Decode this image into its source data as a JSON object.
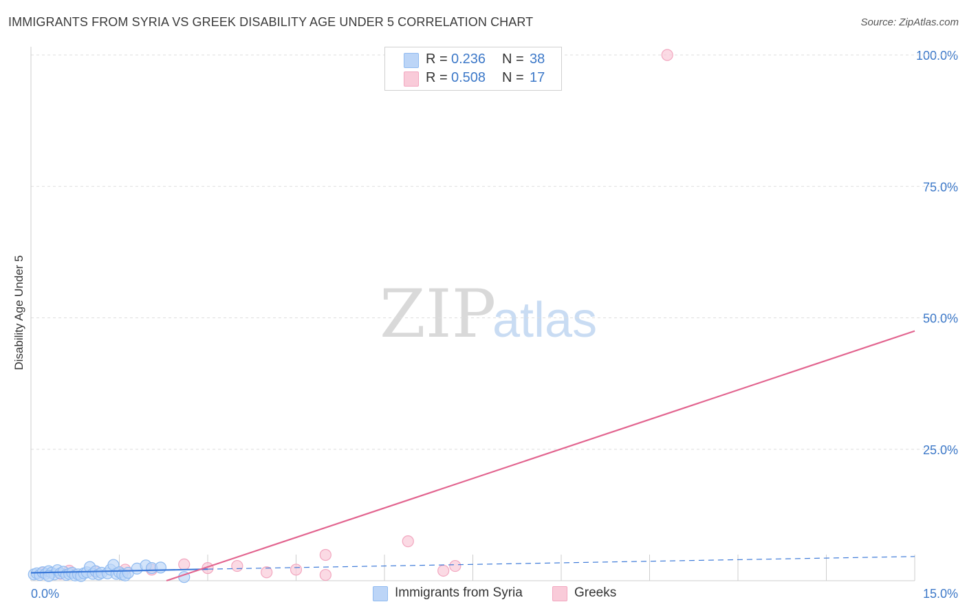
{
  "header": {
    "title": "IMMIGRANTS FROM SYRIA VS GREEK DISABILITY AGE UNDER 5 CORRELATION CHART",
    "source": "Source: ZipAtlas.com"
  },
  "watermark": {
    "zip": "ZIP",
    "atlas": "atlas"
  },
  "legend": {
    "r_label": "R =",
    "n_label": "N =",
    "entries": [
      {
        "r": "0.236",
        "n": "38"
      },
      {
        "r": "0.508",
        "n": "17"
      }
    ]
  },
  "colors": {
    "syria": "#8fbaf0",
    "syria_fill": "#bcd5f7",
    "greeks": "#f2a6bf",
    "greeks_fill": "#f9cbd9",
    "syria_line": "#3a78d8",
    "greeks_line": "#e2648f",
    "tick_text": "#3c78c8"
  },
  "chart_data": {
    "type": "scatter",
    "title": "IMMIGRANTS FROM SYRIA VS GREEK DISABILITY AGE UNDER 5 CORRELATION CHART",
    "xlabel": "",
    "ylabel": "Disability Age Under 5",
    "xlim": [
      0,
      15
    ],
    "ylim": [
      0,
      100
    ],
    "x_tick_labels": [
      "0.0%",
      "15.0%"
    ],
    "y_ticks": [
      25,
      50,
      75,
      100
    ],
    "y_tick_labels": [
      "25.0%",
      "50.0%",
      "75.0%",
      "100.0%"
    ],
    "grid": true,
    "series": [
      {
        "name": "Immigrants from Syria",
        "color": "#8fbaf0",
        "r": 0.236,
        "n": 38,
        "points": [
          [
            0.05,
            1.2
          ],
          [
            0.1,
            1.4
          ],
          [
            0.15,
            1.1
          ],
          [
            0.2,
            1.6
          ],
          [
            0.25,
            1.3
          ],
          [
            0.3,
            1.8
          ],
          [
            0.35,
            1.5
          ],
          [
            0.4,
            1.2
          ],
          [
            0.45,
            2.0
          ],
          [
            0.5,
            1.4
          ],
          [
            0.55,
            1.7
          ],
          [
            0.6,
            1.1
          ],
          [
            0.65,
            1.3
          ],
          [
            0.7,
            1.5
          ],
          [
            0.75,
            1.0
          ],
          [
            0.8,
            1.2
          ],
          [
            0.85,
            0.9
          ],
          [
            0.9,
            1.4
          ],
          [
            0.95,
            1.6
          ],
          [
            1.0,
            2.6
          ],
          [
            1.05,
            1.3
          ],
          [
            1.1,
            1.8
          ],
          [
            1.15,
            1.2
          ],
          [
            1.2,
            1.5
          ],
          [
            1.3,
            1.4
          ],
          [
            1.35,
            2.1
          ],
          [
            1.4,
            3.0
          ],
          [
            1.45,
            1.3
          ],
          [
            1.5,
            1.6
          ],
          [
            1.55,
            1.2
          ],
          [
            1.6,
            1.0
          ],
          [
            1.65,
            1.5
          ],
          [
            1.8,
            2.3
          ],
          [
            1.95,
            2.9
          ],
          [
            2.05,
            2.4
          ],
          [
            2.2,
            2.5
          ],
          [
            2.6,
            0.7
          ],
          [
            0.3,
            0.9
          ]
        ],
        "trend": {
          "x": [
            0.0,
            3.0
          ],
          "y": [
            1.5,
            2.2
          ],
          "dashed_extension": {
            "x": [
              3.0,
              15.0
            ],
            "y": [
              2.2,
              4.6
            ]
          }
        }
      },
      {
        "name": "Greeks",
        "color": "#f2a6bf",
        "r": 0.508,
        "n": 17,
        "points": [
          [
            0.2,
            1.5
          ],
          [
            0.5,
            1.3
          ],
          [
            0.65,
            1.9
          ],
          [
            1.1,
            1.7
          ],
          [
            1.6,
            2.1
          ],
          [
            2.05,
            2.1
          ],
          [
            2.6,
            3.1
          ],
          [
            3.0,
            2.4
          ],
          [
            3.5,
            2.8
          ],
          [
            4.0,
            1.6
          ],
          [
            4.5,
            2.1
          ],
          [
            5.0,
            4.9
          ],
          [
            5.0,
            1.1
          ],
          [
            6.4,
            7.5
          ],
          [
            7.0,
            1.9
          ],
          [
            7.2,
            2.8
          ],
          [
            10.8,
            100.0
          ]
        ],
        "trend": {
          "x": [
            2.3,
            15.0
          ],
          "y": [
            0.0,
            47.5
          ]
        }
      }
    ]
  },
  "bottom_legend": [
    {
      "label": "Immigrants from Syria"
    },
    {
      "label": "Greeks"
    }
  ]
}
